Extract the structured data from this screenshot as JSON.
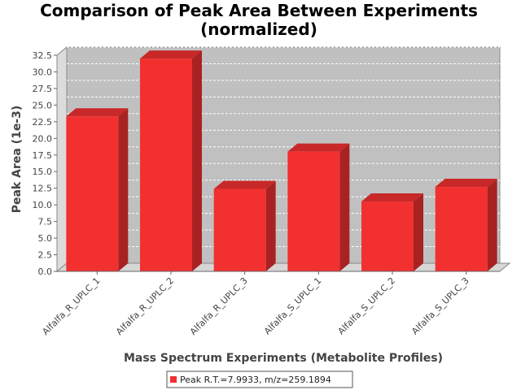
{
  "chart_data": {
    "type": "bar",
    "title_line1": "Comparison of Peak Area Between Experiments",
    "title_line2": "(normalized)",
    "xlabel": "Mass Spectrum Experiments (Metabolite Profiles)",
    "ylabel": "Peak Area (1e-3)",
    "categories": [
      "Alfalfa_R_UPLC_1",
      "Alfalfa_R_UPLC_2",
      "Alfalfa_R_UPLC_3",
      "Alfalfa_S_UPLC_1",
      "Alfalfa_S_UPLC_2",
      "Alfalfa_S_UPLC_3"
    ],
    "series": [
      {
        "name": "Peak R.T.=7.9933, m/z=259.1894",
        "values": [
          23.3,
          32.0,
          12.4,
          18.0,
          10.5,
          12.7
        ]
      }
    ],
    "ylim": [
      0,
      32.5
    ],
    "yticks": [
      "0.0",
      "2.5",
      "5.0",
      "7.5",
      "10.0",
      "12.5",
      "15.0",
      "17.5",
      "20.0",
      "22.5",
      "25.0",
      "27.5",
      "30.0",
      "32.5"
    ],
    "grid": true,
    "legend_position": "bottom-center",
    "colors": {
      "bar_front": "#f23030",
      "bar_top": "#c82828",
      "bar_side": "#a82222",
      "plot_back": "#c0c0c0",
      "plot_floor": "#d6d6d6",
      "plot_wall": "#dcdcdc",
      "grid": "#ffffff"
    }
  }
}
